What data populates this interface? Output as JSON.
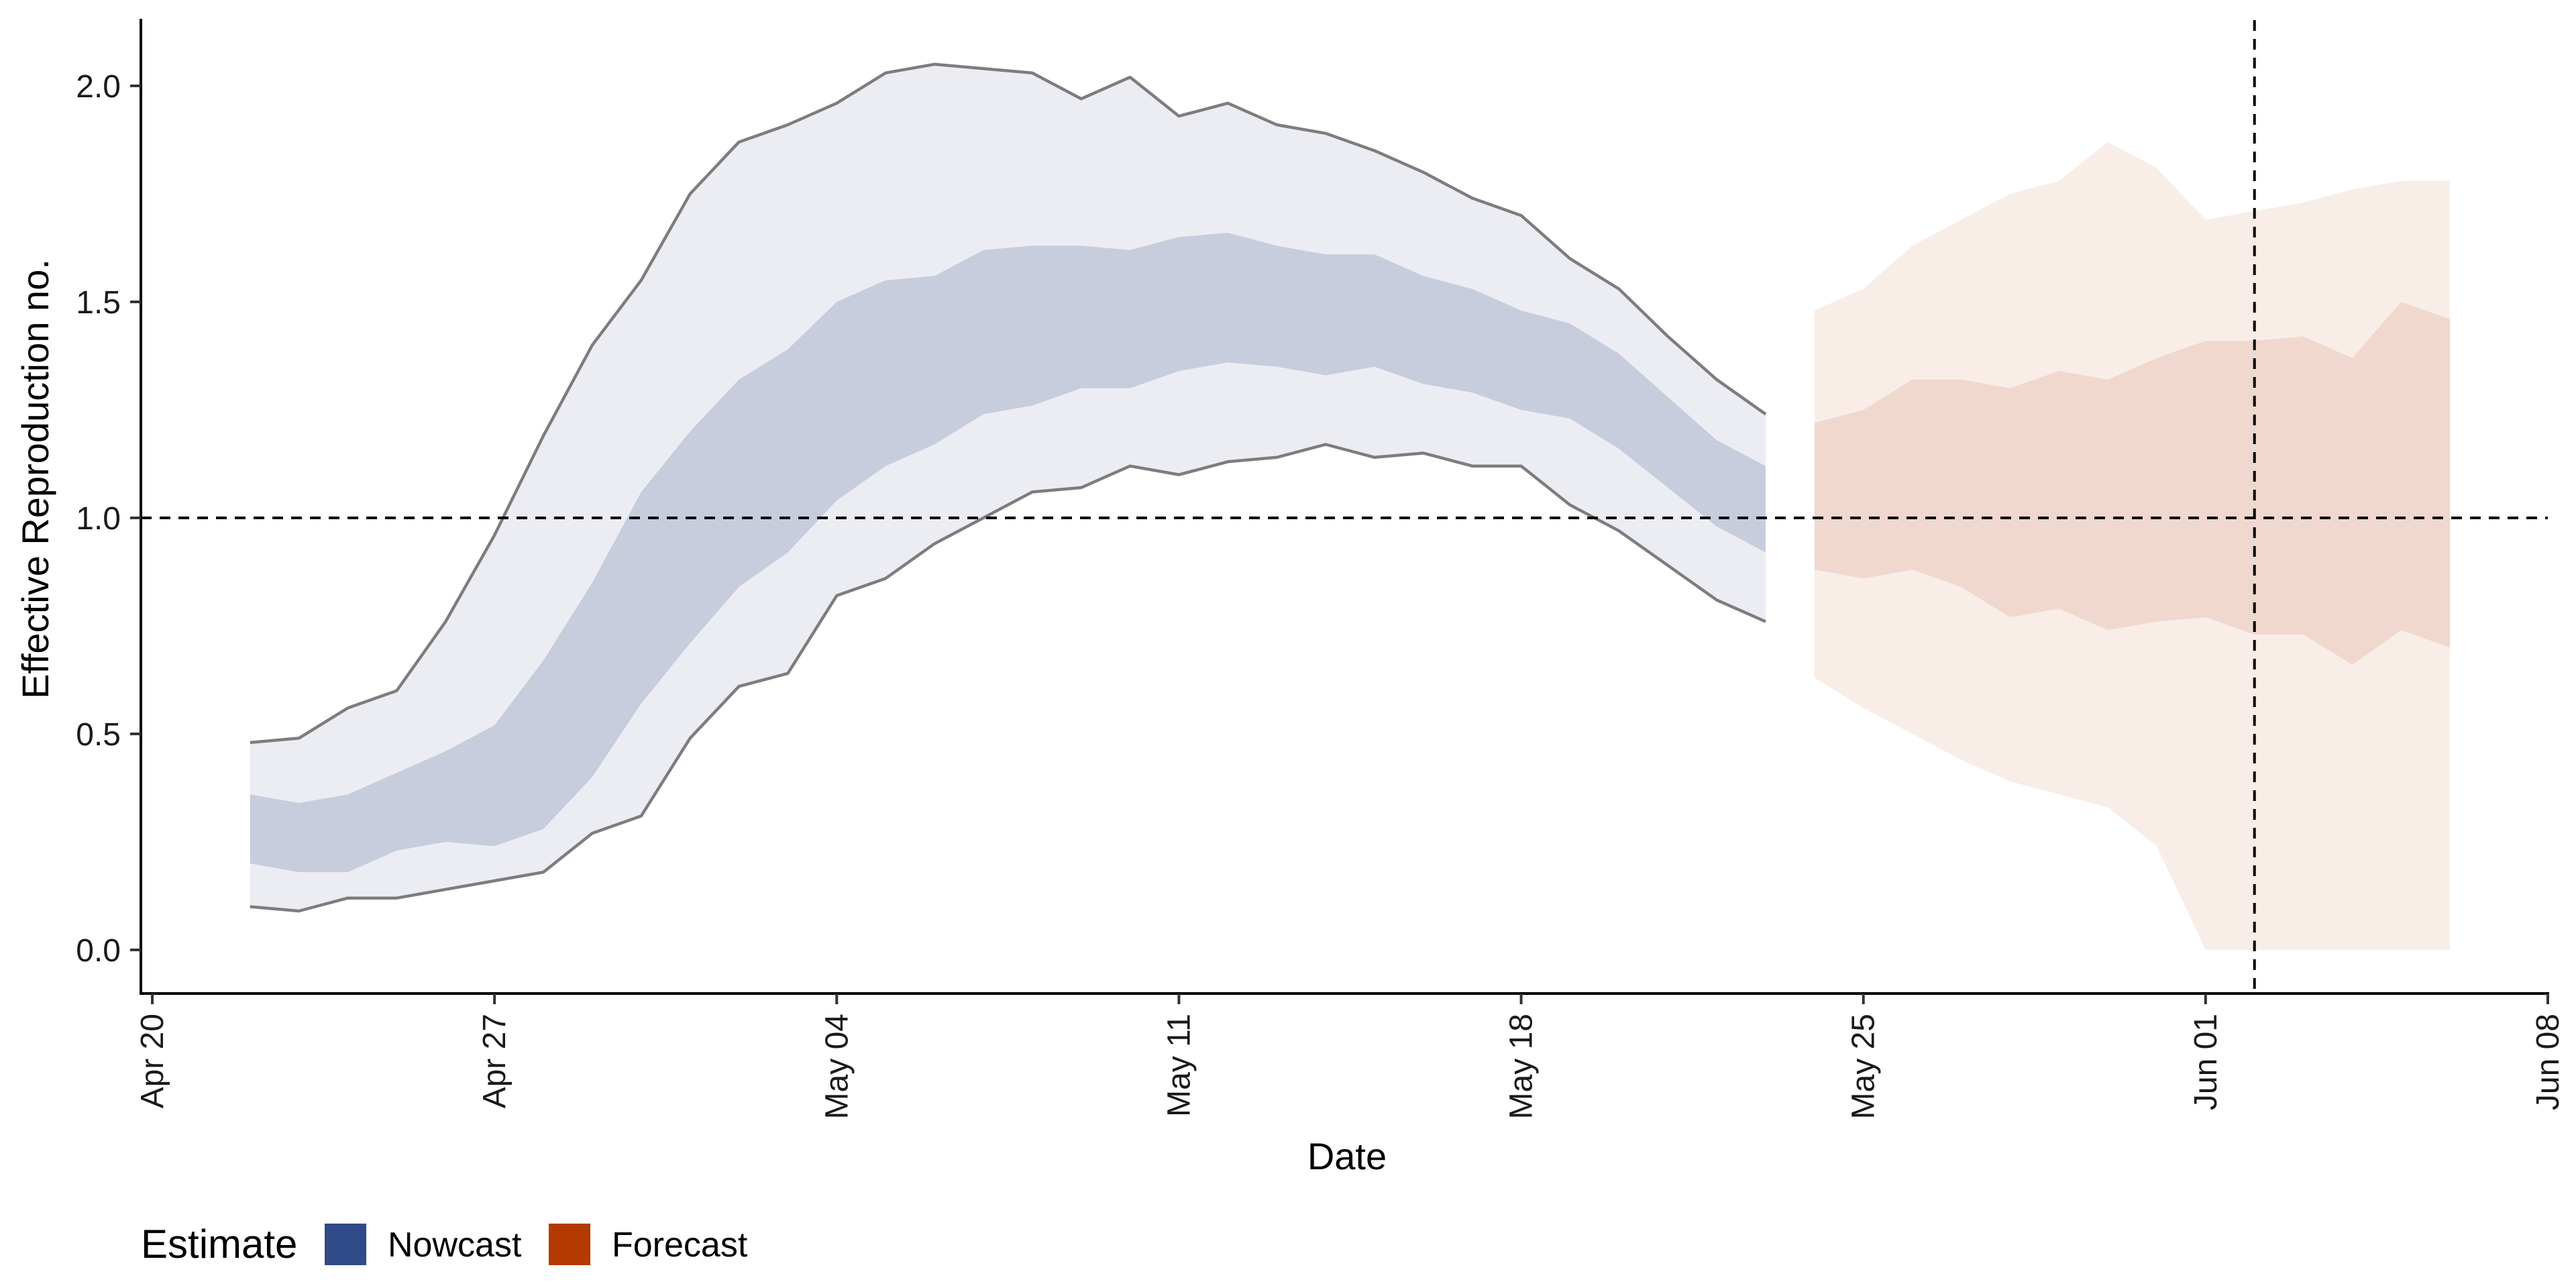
{
  "chart_data": {
    "type": "area",
    "xlabel": "Date",
    "ylabel": "Effective Reproduction no.",
    "x_tick_labels": [
      "Apr 20",
      "Apr 27",
      "May 04",
      "May 11",
      "May 18",
      "May 25",
      "Jun 01",
      "Jun 08"
    ],
    "y_tick_labels": [
      "0.0",
      "0.5",
      "1.0",
      "1.5",
      "2.0"
    ],
    "y_ticks": [
      0.0,
      0.5,
      1.0,
      1.5,
      2.0
    ],
    "ylim": [
      -0.1,
      2.16
    ],
    "xlim": [
      "2020-04-20",
      "2020-06-08"
    ],
    "grid": false,
    "reference_lines": {
      "horizontal_y": 1.0,
      "vertical_x": "2020-06-02"
    },
    "legend": {
      "title": "Estimate",
      "position": "bottom-left",
      "items": [
        {
          "label": "Nowcast",
          "color": "#2f4a87"
        },
        {
          "label": "Forecast",
          "color": "#b33a00"
        }
      ]
    },
    "series": [
      {
        "name": "Nowcast",
        "color": "#2f4a87",
        "dates": [
          "2020-04-22",
          "2020-04-23",
          "2020-04-24",
          "2020-04-25",
          "2020-04-26",
          "2020-04-27",
          "2020-04-28",
          "2020-04-29",
          "2020-04-30",
          "2020-05-01",
          "2020-05-02",
          "2020-05-03",
          "2020-05-04",
          "2020-05-05",
          "2020-05-06",
          "2020-05-07",
          "2020-05-08",
          "2020-05-09",
          "2020-05-10",
          "2020-05-11",
          "2020-05-12",
          "2020-05-13",
          "2020-05-14",
          "2020-05-15",
          "2020-05-16",
          "2020-05-17",
          "2020-05-18",
          "2020-05-19",
          "2020-05-20",
          "2020-05-21",
          "2020-05-22",
          "2020-05-23"
        ],
        "upper_90": [
          0.48,
          0.49,
          0.56,
          0.6,
          0.76,
          0.96,
          1.19,
          1.4,
          1.55,
          1.75,
          1.87,
          1.91,
          1.96,
          2.03,
          2.05,
          2.04,
          2.03,
          1.97,
          2.02,
          1.93,
          1.96,
          1.91,
          1.89,
          1.85,
          1.8,
          1.74,
          1.7,
          1.6,
          1.53,
          1.42,
          1.32,
          1.24
        ],
        "upper_50": [
          0.36,
          0.34,
          0.36,
          0.41,
          0.46,
          0.52,
          0.67,
          0.85,
          1.06,
          1.2,
          1.32,
          1.39,
          1.5,
          1.55,
          1.56,
          1.62,
          1.63,
          1.63,
          1.62,
          1.65,
          1.66,
          1.63,
          1.61,
          1.61,
          1.56,
          1.53,
          1.48,
          1.45,
          1.38,
          1.28,
          1.18,
          1.12
        ],
        "lower_50": [
          0.2,
          0.18,
          0.18,
          0.23,
          0.25,
          0.24,
          0.28,
          0.4,
          0.57,
          0.71,
          0.84,
          0.92,
          1.04,
          1.12,
          1.17,
          1.24,
          1.26,
          1.3,
          1.3,
          1.34,
          1.36,
          1.35,
          1.33,
          1.35,
          1.31,
          1.29,
          1.25,
          1.23,
          1.16,
          1.07,
          0.98,
          0.92
        ],
        "lower_90": [
          0.1,
          0.09,
          0.12,
          0.12,
          0.14,
          0.16,
          0.18,
          0.27,
          0.31,
          0.49,
          0.61,
          0.64,
          0.82,
          0.86,
          0.94,
          1.0,
          1.06,
          1.07,
          1.12,
          1.1,
          1.13,
          1.14,
          1.17,
          1.14,
          1.15,
          1.12,
          1.12,
          1.03,
          0.97,
          0.89,
          0.81,
          0.76
        ]
      },
      {
        "name": "Forecast",
        "color": "#b33a00",
        "dates": [
          "2020-05-24",
          "2020-05-25",
          "2020-05-26",
          "2020-05-27",
          "2020-05-28",
          "2020-05-29",
          "2020-05-30",
          "2020-05-31",
          "2020-06-01",
          "2020-06-02",
          "2020-06-03",
          "2020-06-04",
          "2020-06-05",
          "2020-06-06"
        ],
        "upper_90": [
          1.48,
          1.53,
          1.63,
          1.69,
          1.75,
          1.78,
          1.87,
          1.81,
          1.69,
          1.71,
          1.73,
          1.76,
          1.78,
          1.78
        ],
        "upper_50": [
          1.22,
          1.25,
          1.32,
          1.32,
          1.3,
          1.34,
          1.32,
          1.37,
          1.41,
          1.41,
          1.42,
          1.37,
          1.5,
          1.46
        ],
        "lower_50": [
          0.88,
          0.86,
          0.88,
          0.84,
          0.77,
          0.79,
          0.74,
          0.76,
          0.77,
          0.73,
          0.73,
          0.66,
          0.74,
          0.7
        ],
        "lower_90": [
          0.63,
          0.56,
          0.5,
          0.44,
          0.39,
          0.36,
          0.33,
          0.24,
          0.0,
          0.0,
          0.0,
          0.0,
          0.0,
          0.0
        ]
      }
    ]
  }
}
